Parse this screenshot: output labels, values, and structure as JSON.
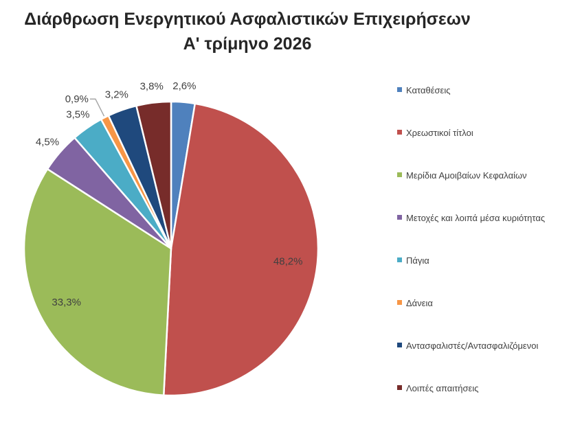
{
  "chart_data": {
    "type": "pie",
    "title_lines": [
      "Διάρθρωση Ενεργητικού Ασφαλιστικών Επιχειρήσεων",
      "Α' τρίμηνο 2026"
    ],
    "legend_position": "right",
    "slices": [
      {
        "label": "Καταθέσεις",
        "value": 2.6,
        "value_label": "2,6%",
        "color": "#4F81BD"
      },
      {
        "label": "Χρεωστικοί τίτλοι",
        "value": 48.2,
        "value_label": "48,2%",
        "color": "#C0504D"
      },
      {
        "label": "Μερίδια Αμοιβαίων Κεφαλαίων",
        "value": 33.3,
        "value_label": "33,3%",
        "color": "#9BBB59"
      },
      {
        "label": "Μετοχές και λοιπά μέσα κυριότητας",
        "value": 4.5,
        "value_label": "4,5%",
        "color": "#8064A2"
      },
      {
        "label": "Πάγια",
        "value": 3.5,
        "value_label": "3,5%",
        "color": "#4BACC6"
      },
      {
        "label": "Δάνεια",
        "value": 0.9,
        "value_label": "0,9%",
        "color": "#F79646"
      },
      {
        "label": "Αντασφαλιστές/Αντασφαλιζόμενοι",
        "value": 3.2,
        "value_label": "3,2%",
        "color": "#1F497D"
      },
      {
        "label": "Λοιπές απαιτήσεις",
        "value": 3.8,
        "value_label": "3,8%",
        "color": "#772C2A"
      }
    ]
  }
}
